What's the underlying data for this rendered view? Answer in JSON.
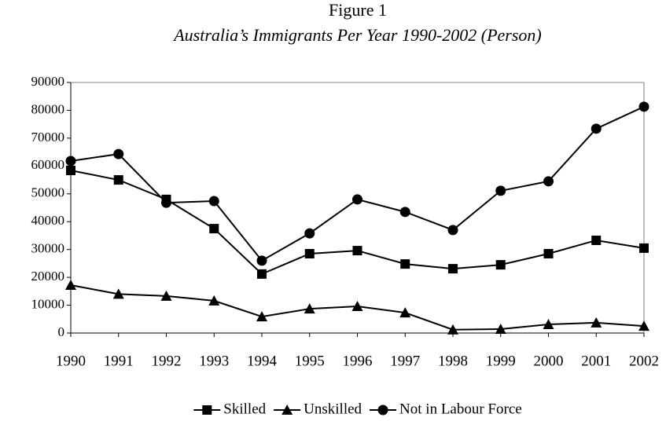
{
  "chart_data": {
    "type": "line",
    "title": "Figure 1",
    "subtitle": "Australia’s Immigrants Per Year 1990-2002 (Person)",
    "x": [
      1990,
      1991,
      1992,
      1993,
      1994,
      1995,
      1996,
      1997,
      1998,
      1999,
      2000,
      2001,
      2002
    ],
    "xlim": [
      1990,
      2002
    ],
    "xticks": [
      1990,
      1991,
      1992,
      1993,
      1994,
      1995,
      1996,
      1997,
      1998,
      1999,
      2000,
      2001,
      2002
    ],
    "ylim": [
      0,
      90000
    ],
    "yticks": [
      0,
      10000,
      20000,
      30000,
      40000,
      50000,
      60000,
      70000,
      80000,
      90000
    ],
    "grid": false,
    "legend": "bottom",
    "series": [
      {
        "name": "Skilled",
        "color": "#000000",
        "marker": "square",
        "values": [
          58400,
          55000,
          48000,
          37500,
          21200,
          28500,
          29600,
          24800,
          23100,
          24500,
          28500,
          33300,
          30500
        ]
      },
      {
        "name": "Unskilled",
        "color": "#000000",
        "marker": "triangle",
        "values": [
          17200,
          14000,
          13300,
          11600,
          5900,
          8700,
          9600,
          7300,
          1200,
          1400,
          3100,
          3700,
          2500
        ]
      },
      {
        "name": "Not in Labour Force",
        "color": "#000000",
        "marker": "circle",
        "values": [
          61800,
          64300,
          46800,
          47400,
          26000,
          35800,
          48000,
          43500,
          37000,
          51100,
          54500,
          73400,
          81300
        ]
      }
    ]
  }
}
